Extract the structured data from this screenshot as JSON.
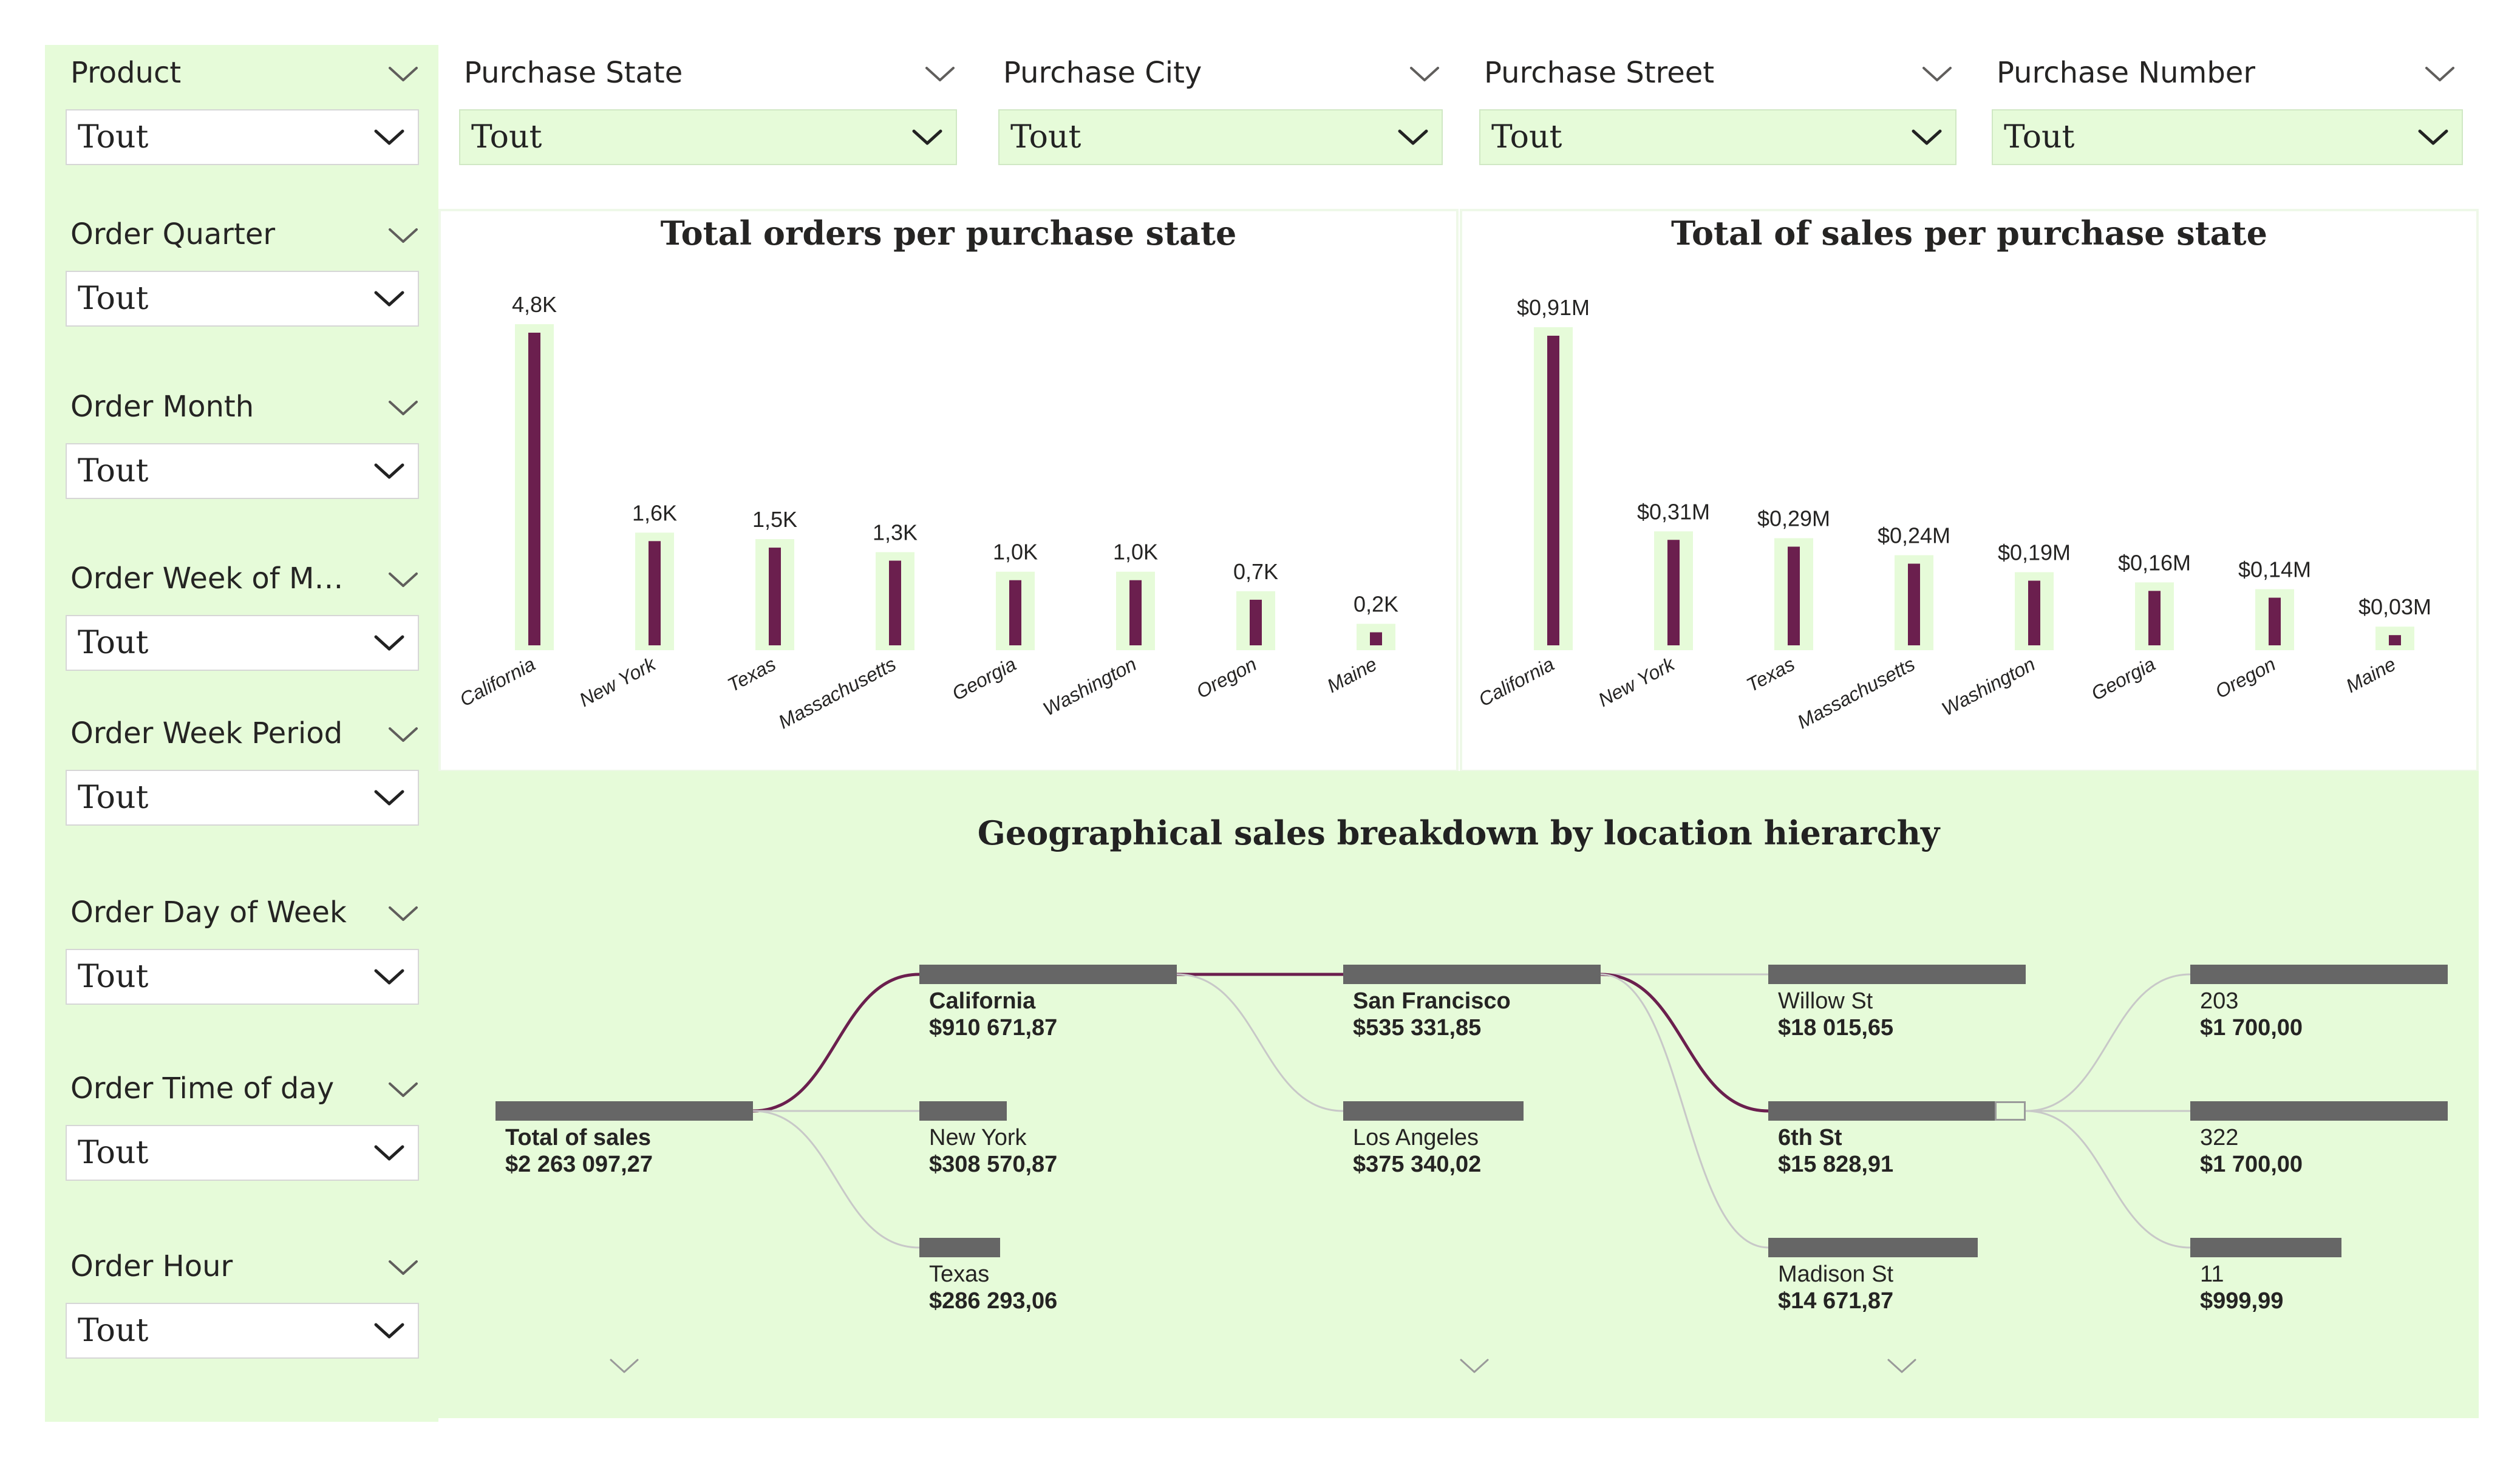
{
  "left_slicers": [
    {
      "title": "Product",
      "value": "Tout"
    },
    {
      "title": "Order Quarter",
      "value": "Tout"
    },
    {
      "title": "Order Month",
      "value": "Tout"
    },
    {
      "title": "Order Week of Mo...",
      "value": "Tout"
    },
    {
      "title": "Order Week Period",
      "value": "Tout"
    },
    {
      "title": "Order Day of Week",
      "value": "Tout"
    },
    {
      "title": "Order Time of day",
      "value": "Tout"
    },
    {
      "title": "Order Hour",
      "value": "Tout"
    }
  ],
  "top_slicers": [
    {
      "title": "Purchase State",
      "value": "Tout"
    },
    {
      "title": "Purchase City",
      "value": "Tout"
    },
    {
      "title": "Purchase Street",
      "value": "Tout"
    },
    {
      "title": "Purchase Number",
      "value": "Tout"
    }
  ],
  "colors": {
    "panel_bg": "#e6fbd9",
    "bar": "#6b1f4e",
    "bar_highlight": "#e6fbd9",
    "tree_bar": "#666666",
    "tree_link_selected": "#6b1f4e",
    "tree_link": "#c8c8c8"
  },
  "chart_data": [
    {
      "type": "bar",
      "title": "Total orders per purchase state",
      "categories": [
        "California",
        "New York",
        "Texas",
        "Massachusetts",
        "Georgia",
        "Washington",
        "Oregon",
        "Maine"
      ],
      "values": [
        4.8,
        1.6,
        1.5,
        1.3,
        1.0,
        1.0,
        0.7,
        0.2
      ],
      "data_labels": [
        "4,8K",
        "1,6K",
        "1,5K",
        "1,3K",
        "1,0K",
        "1,0K",
        "0,7K",
        "0,2K"
      ],
      "unit": "K",
      "ylim": [
        0,
        4.8
      ],
      "grid": false
    },
    {
      "type": "bar",
      "title": "Total of sales per purchase state",
      "categories": [
        "California",
        "New York",
        "Texas",
        "Massachusetts",
        "Washington",
        "Georgia",
        "Oregon",
        "Maine"
      ],
      "values": [
        0.91,
        0.31,
        0.29,
        0.24,
        0.19,
        0.16,
        0.14,
        0.03
      ],
      "data_labels": [
        "$0,91M",
        "$0,31M",
        "$0,29M",
        "$0,24M",
        "$0,19M",
        "$0,16M",
        "$0,14M",
        "$0,03M"
      ],
      "unit": "M",
      "ylim": [
        0,
        0.91
      ],
      "grid": false
    }
  ],
  "tree": {
    "title": "Geographical sales breakdown by location hierarchy",
    "root": {
      "label": "Total of sales",
      "value": "$2 263 097,27",
      "amount": 2263097.27
    },
    "levels": [
      [
        {
          "label": "California",
          "value": "$910 671,87",
          "amount": 910671.87,
          "selected": true
        },
        {
          "label": "New York",
          "value": "$308 570,87",
          "amount": 308570.87
        },
        {
          "label": "Texas",
          "value": "$286 293,06",
          "amount": 286293.06
        }
      ],
      [
        {
          "label": "San Francisco",
          "value": "$535 331,85",
          "amount": 535331.85,
          "selected": true
        },
        {
          "label": "Los Angeles",
          "value": "$375 340,02",
          "amount": 375340.02
        }
      ],
      [
        {
          "label": "Willow St",
          "value": "$18 015,65",
          "amount": 18015.65
        },
        {
          "label": "6th St",
          "value": "$15 828,91",
          "amount": 15828.91,
          "selected": true
        },
        {
          "label": "Madison St",
          "value": "$14 671,87",
          "amount": 14671.87
        }
      ],
      [
        {
          "label": "203",
          "value": "$1 700,00",
          "amount": 1700.0
        },
        {
          "label": "322",
          "value": "$1 700,00",
          "amount": 1700.0
        },
        {
          "label": "11",
          "value": "$999,99",
          "amount": 999.99
        }
      ]
    ]
  }
}
